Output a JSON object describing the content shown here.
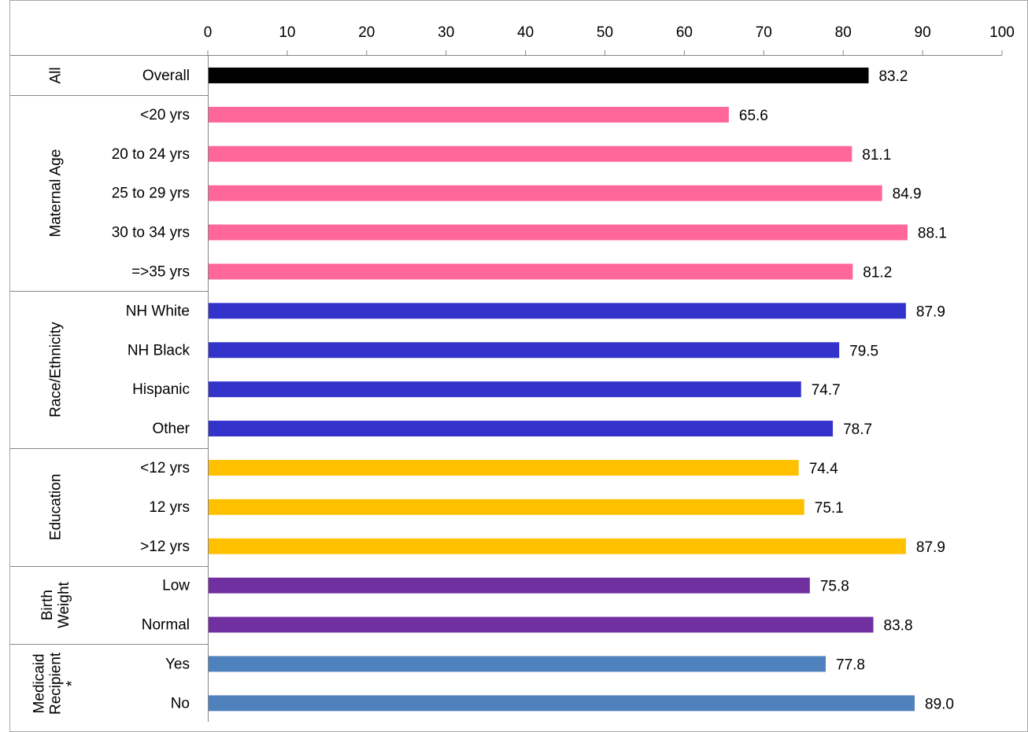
{
  "chart_data": {
    "type": "bar",
    "orientation": "horizontal",
    "title": "",
    "xlabel": "",
    "ylabel": "",
    "xlim": [
      0,
      100
    ],
    "xticks": [
      0,
      10,
      20,
      30,
      40,
      50,
      60,
      70,
      80,
      90,
      100
    ],
    "grid": false,
    "legend": "none",
    "groups": [
      {
        "label": "All",
        "color": "#000000",
        "lines": [
          "All"
        ],
        "items": [
          {
            "label": "Overall",
            "value": 83.2,
            "value_label": "83.2"
          }
        ]
      },
      {
        "label": "Maternal Age",
        "color": "#FF6699",
        "lines": [
          "Maternal Age"
        ],
        "items": [
          {
            "label": "<20 yrs",
            "value": 65.6,
            "value_label": "65.6"
          },
          {
            "label": "20 to 24 yrs",
            "value": 81.1,
            "value_label": "81.1"
          },
          {
            "label": "25 to 29 yrs",
            "value": 84.9,
            "value_label": "84.9"
          },
          {
            "label": "30 to 34 yrs",
            "value": 88.1,
            "value_label": "88.1"
          },
          {
            "label": "=>35 yrs",
            "value": 81.2,
            "value_label": "81.2"
          }
        ]
      },
      {
        "label": "Race/Ethnicity",
        "color": "#3333CC",
        "lines": [
          "Race/Ethnicity"
        ],
        "items": [
          {
            "label": "NH White",
            "value": 87.9,
            "value_label": "87.9"
          },
          {
            "label": "NH Black",
            "value": 79.5,
            "value_label": "79.5"
          },
          {
            "label": "Hispanic",
            "value": 74.7,
            "value_label": "74.7"
          },
          {
            "label": "Other",
            "value": 78.7,
            "value_label": "78.7"
          }
        ]
      },
      {
        "label": "Education",
        "color": "#FFC000",
        "lines": [
          "Education"
        ],
        "items": [
          {
            "label": "<12 yrs",
            "value": 74.4,
            "value_label": "74.4"
          },
          {
            "label": "12 yrs",
            "value": 75.1,
            "value_label": "75.1"
          },
          {
            "label": ">12 yrs",
            "value": 87.9,
            "value_label": "87.9"
          }
        ]
      },
      {
        "label": "Birth Weight",
        "color": "#7030A0",
        "lines": [
          "Birth",
          "Weight"
        ],
        "items": [
          {
            "label": "Low",
            "value": 75.8,
            "value_label": "75.8"
          },
          {
            "label": "Normal",
            "value": 83.8,
            "value_label": "83.8"
          }
        ]
      },
      {
        "label": "Medicaid Recipient *",
        "color": "#4F81BD",
        "lines": [
          "Medicaid",
          "Recipient",
          "*"
        ],
        "items": [
          {
            "label": "Yes",
            "value": 77.8,
            "value_label": "77.8"
          },
          {
            "label": "No",
            "value": 89.0,
            "value_label": "89.0"
          }
        ]
      }
    ]
  }
}
